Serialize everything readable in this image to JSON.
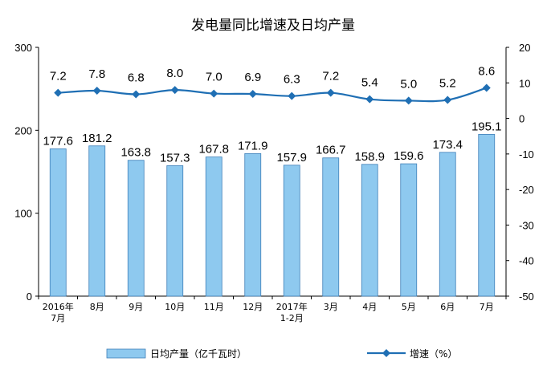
{
  "chart_data": {
    "type": "bar",
    "title": "发电量同比增速及日均产量",
    "categories": [
      "2016年\n7月",
      "8月",
      "9月",
      "10月",
      "11月",
      "12月",
      "2017年\n1-2月",
      "3月",
      "4月",
      "5月",
      "6月",
      "7月"
    ],
    "series": [
      {
        "name": "日均产量（亿千瓦时）",
        "type": "bar",
        "axis": "left",
        "values": [
          177.6,
          181.2,
          163.8,
          157.3,
          167.8,
          171.9,
          157.9,
          166.7,
          158.9,
          159.6,
          173.4,
          195.1
        ],
        "color": "#8EC9EF"
      },
      {
        "name": "增速（%）",
        "type": "line",
        "axis": "right",
        "values": [
          7.2,
          7.8,
          6.8,
          8.0,
          7.0,
          6.9,
          6.3,
          7.2,
          5.4,
          5.0,
          5.2,
          8.6
        ],
        "color": "#1F6FB4"
      }
    ],
    "ylim_left": [
      0,
      300
    ],
    "yticks_left": [
      0,
      100,
      200,
      300
    ],
    "ylim_right": [
      -50,
      20
    ],
    "yticks_right": [
      -50,
      -40,
      -30,
      -20,
      -10,
      0,
      10,
      20
    ],
    "grid": false,
    "legend": "bottom"
  }
}
